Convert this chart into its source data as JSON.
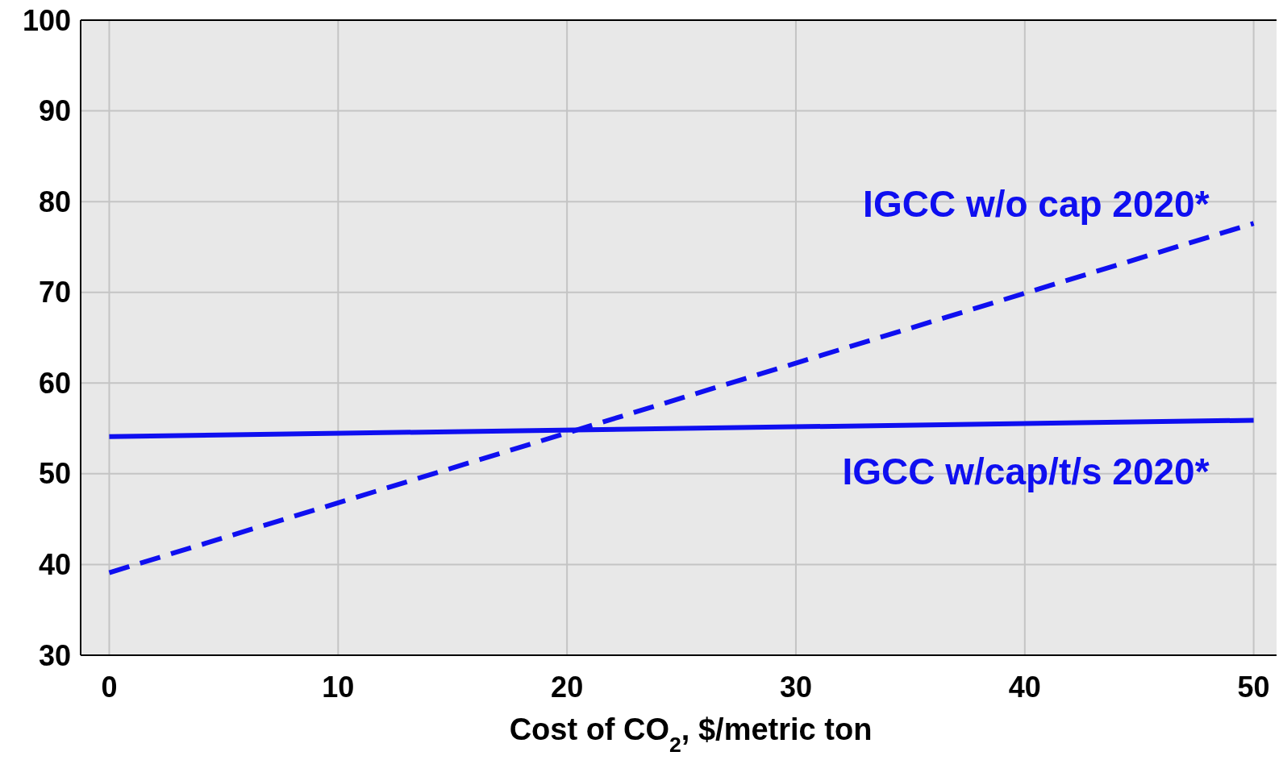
{
  "chart_data": {
    "type": "line",
    "xlabel": "Cost of CO$_{2}$, $/metric ton",
    "x": [
      0,
      50
    ],
    "xlim": [
      -1.25,
      51
    ],
    "xticks": [
      0,
      10,
      20,
      30,
      40,
      50
    ],
    "ylim": [
      30,
      100
    ],
    "yticks": [
      30,
      40,
      50,
      60,
      70,
      80,
      90,
      100
    ],
    "grid": true,
    "series": [
      {
        "name": "IGCC w/o cap 2020*",
        "color": "#0f0ff0",
        "values": [
          39.1,
          77.6
        ],
        "line_style": "dashed"
      },
      {
        "name": "IGCC w/cap/t/s 2020*",
        "color": "#0f0ff0",
        "values": [
          54.1,
          55.9
        ],
        "line_style": "solid"
      }
    ]
  }
}
